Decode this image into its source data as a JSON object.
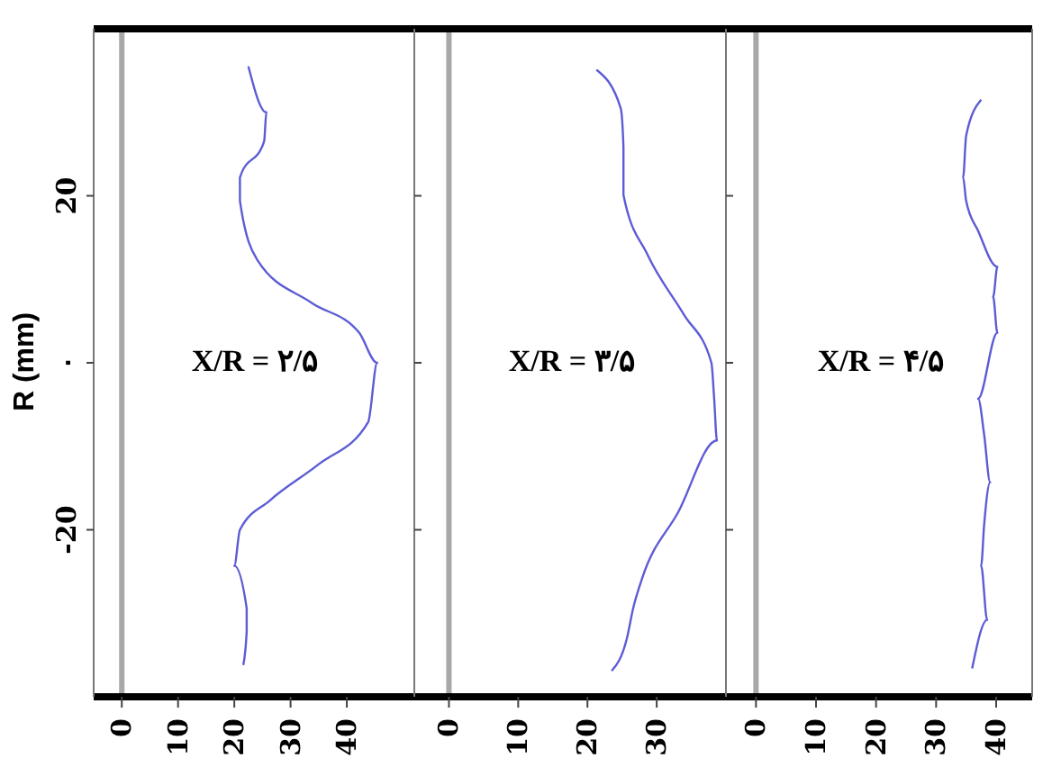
{
  "chart_data": [
    {
      "type": "line",
      "ylabel": "R (mm)",
      "ylim": [
        -40,
        40
      ],
      "yticks": [
        -20,
        {
          "value": 0,
          "label": "۰"
        },
        20
      ],
      "xlim": [
        -5,
        52
      ],
      "xticks": [
        0,
        10,
        20,
        30,
        40
      ],
      "annotations": [
        "X/R = ۲/۵"
      ],
      "ref_lines": [
        {
          "axis": "x",
          "value": 0,
          "color": "#a8a8a8"
        }
      ],
      "marker": "none",
      "series": [
        {
          "color": "#5c5cd6",
          "x": [
            22.5,
            25.7,
            25.3,
            21,
            21,
            24.1,
            33.7,
            42.2,
            45.4,
            43.8,
            34.9,
            26.3,
            21,
            20,
            22.2,
            22.2,
            21.6
          ],
          "values": [
            35.5,
            30,
            26.5,
            22.2,
            19.4,
            12.3,
            7.2,
            3.6,
            0,
            -7.1,
            -12.2,
            -16.5,
            -20,
            -24.3,
            -29.4,
            -32.2,
            -36.2
          ]
        }
      ]
    },
    {
      "type": "line",
      "ylim": [
        -40,
        40
      ],
      "yticks": [
        -20,
        0,
        20
      ],
      "xlim": [
        -5,
        40
      ],
      "xticks": [
        0,
        10,
        20,
        30
      ],
      "tick_labels": "x",
      "annotations": [
        "X/R = ۳/۵"
      ],
      "ref_lines": [
        {
          "axis": "x",
          "value": 0,
          "color": "#a8a8a8"
        }
      ],
      "marker": "none",
      "series": [
        {
          "color": "#5c5cd6",
          "x": [
            21.3,
            24.8,
            25.2,
            25.2,
            28.7,
            33.9,
            37.9,
            38.3,
            38.7,
            33.1,
            27.9,
            26.6,
            25.7,
            23.5
          ],
          "values": [
            35.1,
            30.5,
            25.8,
            20.1,
            12.9,
            5.8,
            0,
            -4.3,
            -9.3,
            -17.9,
            -25.8,
            -29.4,
            -33,
            -36.9
          ]
        }
      ]
    },
    {
      "type": "line",
      "ylim": [
        -40,
        40
      ],
      "yticks": [
        -20,
        0,
        20
      ],
      "xlim": [
        -5,
        46
      ],
      "xticks": [
        0,
        10,
        20,
        30,
        40
      ],
      "tick_labels": "x",
      "annotations": [
        "X/R = ۴/۵"
      ],
      "ref_lines": [
        {
          "axis": "x",
          "value": 0,
          "color": "#a8a8a8"
        }
      ],
      "marker": "none",
      "series": [
        {
          "color": "#5c5cd6",
          "x": [
            37.5,
            35,
            34.5,
            35,
            37,
            40.2,
            39.5,
            40.2,
            37,
            38,
            39,
            38,
            37.5,
            38.5,
            36
          ],
          "values": [
            31.5,
            27.2,
            22.2,
            19.4,
            15.8,
            11.5,
            7.9,
            3.6,
            -4.3,
            -8.6,
            -14.3,
            -19.4,
            -24.3,
            -30.8,
            -36.6
          ]
        }
      ]
    }
  ]
}
